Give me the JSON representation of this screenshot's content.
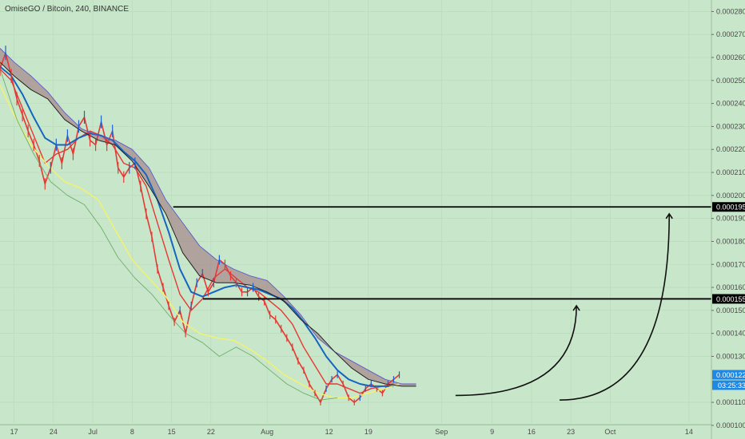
{
  "header": {
    "symbol_text": "OmiseGO / Bitcoin, 240, BINANCE"
  },
  "colors": {
    "background": "#c8e6c9",
    "grid": "#b9d9ba",
    "price_red": "#e53935",
    "price_blue": "#1e5fd0",
    "tenkan_red": "#e53935",
    "kijun_blue": "#1565c0",
    "ma_yellow": "#f4f36a",
    "lagging_green": "#6fae6c",
    "cloud_bear": "#9c6b7a",
    "cloud_bull": "#8f8fd6",
    "span_black": "#222222",
    "span_blue": "#5b5bcb",
    "level_line": "#000000",
    "last_price_tag": "#1e88e5"
  },
  "chart_data": {
    "type": "line",
    "title": "OmiseGO / Bitcoin, 240, BINANCE",
    "xlabel": "",
    "ylabel": "",
    "ylim": [
      0.000101,
      0.000285
    ],
    "grid": false,
    "y_tick_labels": [
      "0.000280",
      "0.000270",
      "0.000260",
      "0.000250",
      "0.000240",
      "0.000230",
      "0.000220",
      "0.000210",
      "0.000200",
      "0.000190",
      "0.000180",
      "0.000170",
      "0.000160",
      "0.000150",
      "0.000140",
      "0.000130",
      "0.000110",
      "0.000100"
    ],
    "y_tick_values": [
      0.00028,
      0.00027,
      0.00026,
      0.00025,
      0.00024,
      0.00023,
      0.00022,
      0.00021,
      0.0002,
      0.00019,
      0.00018,
      0.00017,
      0.00016,
      0.00015,
      0.00014,
      0.00013,
      0.00011,
      0.0001
    ],
    "x_tick_labels": [
      "17",
      "24",
      "Jul",
      "8",
      "15",
      "22",
      "Aug",
      "12",
      "19",
      "Sep",
      "9",
      "16",
      "23",
      "Oct",
      "14"
    ],
    "x_tick_days": [
      -14,
      -7,
      0,
      7,
      14,
      21,
      31,
      42,
      49,
      62,
      71,
      78,
      85,
      92,
      106
    ],
    "x_range_days": [
      -16.5,
      110
    ],
    "series": [
      {
        "x": [
          -16.5,
          -15.5,
          -14.5,
          -13.5,
          -12.5,
          -11.5,
          -10.5,
          -9.5,
          -8.5,
          -7.5,
          -6.5,
          -5.5,
          -4.5,
          -3.5,
          -2.5,
          -1.5,
          -0.5,
          0.5,
          1.5,
          2.5,
          3.5,
          4.5,
          5.5,
          6.5,
          7.5,
          8.5,
          9.5,
          10.5,
          11.5,
          12.5,
          13.5,
          14.5,
          15.5,
          16.5,
          17.5,
          18.5,
          19.5,
          20.5,
          21.5,
          22.5,
          23.5,
          24.5,
          25.5,
          26.5,
          27.5,
          28.5,
          29.5,
          30.5,
          31.5,
          32.5,
          33.5,
          34.5,
          35.5,
          36.5,
          37.5,
          38.5,
          39.5,
          40.5,
          41.5,
          42.5,
          43.5,
          44.5,
          45.5,
          46.5,
          47.5,
          48.5,
          49.5,
          50.5,
          51.5,
          52.5,
          53.5,
          54.5
        ],
        "values": [
          0.000255,
          0.000262,
          0.000252,
          0.000242,
          0.000235,
          0.000228,
          0.000222,
          0.000215,
          0.000205,
          0.000212,
          0.000222,
          0.000214,
          0.000226,
          0.000218,
          0.00023,
          0.000234,
          0.000224,
          0.000222,
          0.000232,
          0.000222,
          0.000228,
          0.000212,
          0.000208,
          0.000212,
          0.000214,
          0.000204,
          0.000192,
          0.000182,
          0.000168,
          0.00016,
          0.000152,
          0.000145,
          0.00015,
          0.00014,
          0.000152,
          0.000162,
          0.000166,
          0.000158,
          0.000162,
          0.000172,
          0.00017,
          0.000165,
          0.000162,
          0.000158,
          0.000158,
          0.00016,
          0.000156,
          0.000154,
          0.000148,
          0.000146,
          0.000142,
          0.000138,
          0.000134,
          0.000128,
          0.000124,
          0.000118,
          0.000114,
          0.00011,
          0.000116,
          0.00012,
          0.000122,
          0.000118,
          0.000112,
          0.00011,
          0.000112,
          0.000116,
          0.000118,
          0.000116,
          0.000114,
          0.000118,
          0.00012,
          0.000122
        ]
      },
      {
        "x": [
          -16.5,
          -14.5,
          -12.5,
          -10.5,
          -8.5,
          -6.5,
          -4.5,
          -2.5,
          -0.5,
          1.5,
          3.5,
          5.5,
          7.5,
          9.5,
          11.5,
          13.5,
          15.5,
          17.5,
          19.5,
          21.5,
          23.5,
          25.5,
          27.5,
          29.5,
          31.5,
          33.5,
          35.5,
          37.5,
          39.5,
          41.5,
          43.5,
          45.5,
          47.5,
          49.5,
          51.5,
          53.5
        ],
        "values": [
          0.000255,
          0.00025,
          0.000238,
          0.000226,
          0.000214,
          0.000218,
          0.00022,
          0.000225,
          0.000228,
          0.000226,
          0.000222,
          0.000214,
          0.000212,
          0.000204,
          0.000188,
          0.000172,
          0.000157,
          0.00015,
          0.000155,
          0.000164,
          0.000168,
          0.000164,
          0.00016,
          0.000158,
          0.000154,
          0.00015,
          0.000144,
          0.000134,
          0.000126,
          0.000118,
          0.000118,
          0.000116,
          0.000114,
          0.000116,
          0.000117,
          0.000118
        ]
      },
      {
        "x": [
          -16.5,
          -14.5,
          -12.5,
          -10.5,
          -8.5,
          -6.5,
          -4.5,
          -2.5,
          -0.5,
          1.5,
          3.5,
          5.5,
          7.5,
          9.5,
          11.5,
          13.5,
          15.5,
          17.5,
          19.5,
          21.5,
          23.5,
          25.5,
          27.5,
          29.5,
          31.5,
          33.5,
          35.5,
          37.5,
          39.5,
          41.5,
          43.5,
          45.5,
          47.5,
          49.5,
          51.5,
          53.5
        ],
        "values": [
          0.000256,
          0.000252,
          0.000244,
          0.000234,
          0.000225,
          0.000222,
          0.000222,
          0.000225,
          0.000227,
          0.000226,
          0.000224,
          0.000219,
          0.000215,
          0.000209,
          0.000198,
          0.000184,
          0.000168,
          0.000158,
          0.000156,
          0.000158,
          0.00016,
          0.000161,
          0.00016,
          0.000159,
          0.000157,
          0.000155,
          0.000151,
          0.000145,
          0.000138,
          0.00013,
          0.000124,
          0.00012,
          0.000118,
          0.000117,
          0.000117,
          0.000117
        ]
      },
      {
        "x": [
          -16.5,
          -14,
          -11,
          -8,
          -5,
          -2,
          1,
          4,
          7,
          10,
          13,
          16,
          19,
          22,
          25,
          28,
          31,
          34,
          37,
          40,
          43,
          46,
          49,
          52,
          54.5
        ],
        "values": [
          0.000248,
          0.000235,
          0.000222,
          0.000213,
          0.000206,
          0.000203,
          0.000198,
          0.000185,
          0.000172,
          0.000164,
          0.000156,
          0.000145,
          0.00014,
          0.000138,
          0.000137,
          0.000133,
          0.000128,
          0.000122,
          0.000118,
          0.000114,
          0.000112,
          0.000112,
          0.000114,
          0.000116,
          0.000118
        ]
      },
      {
        "x": [
          -16.5,
          -13.5,
          -10.5,
          -7.5,
          -4.5,
          -1.5,
          1.5,
          4.5,
          7.5,
          10.5,
          13.5,
          16.5,
          19.5,
          22.5,
          25.5,
          28.5,
          31.5,
          34.5,
          37.5,
          40.5,
          43.5
        ],
        "values": [
          0.000255,
          0.000233,
          0.000218,
          0.000206,
          0.0002,
          0.000196,
          0.000186,
          0.000173,
          0.000164,
          0.000157,
          0.000148,
          0.00014,
          0.000136,
          0.00013,
          0.000134,
          0.00013,
          0.000124,
          0.000118,
          0.000114,
          0.000111,
          0.000112
        ]
      },
      {
        "x": [
          -16.5,
          -14,
          -11,
          -8,
          -5,
          -2,
          1,
          4,
          7,
          10,
          13,
          16,
          19,
          22,
          25,
          28,
          31,
          34,
          37,
          40,
          43,
          46,
          49,
          52,
          55,
          57.5
        ],
        "values": [
          0.000264,
          0.000258,
          0.000252,
          0.000245,
          0.000236,
          0.000229,
          0.000226,
          0.000224,
          0.00022,
          0.000212,
          0.000198,
          0.000188,
          0.000178,
          0.000172,
          0.000168,
          0.000165,
          0.000163,
          0.000156,
          0.000148,
          0.000138,
          0.000132,
          0.000128,
          0.000124,
          0.00012,
          0.000118,
          0.000118
        ]
      },
      {
        "x": [
          -16.5,
          -14,
          -11,
          -8,
          -5,
          -2,
          1,
          4,
          7,
          10,
          13,
          16,
          19,
          22,
          25,
          28,
          31,
          34,
          37,
          40,
          43,
          46,
          49,
          52,
          55,
          57.5
        ],
        "values": [
          0.000258,
          0.000252,
          0.000246,
          0.000242,
          0.000233,
          0.000228,
          0.000224,
          0.000222,
          0.000215,
          0.000204,
          0.000192,
          0.000175,
          0.000165,
          0.000162,
          0.000162,
          0.000161,
          0.000158,
          0.000154,
          0.000146,
          0.00014,
          0.000132,
          0.000125,
          0.00012,
          0.000118,
          0.000117,
          0.000117
        ]
      },
      {
        "x": [
          -16.5,
          54.5
        ],
        "values": [
          0.000195,
          0.000155
        ]
      }
    ],
    "annotations": {
      "horizontal_levels": [
        {
          "value": 0.000195,
          "label": "0.000195",
          "x_from_days": 14.3
        },
        {
          "value": 0.000155,
          "label": "0.000155",
          "x_from_days": 19.6
        }
      ],
      "last_price": {
        "label": "0.000122",
        "value": 0.000122
      },
      "countdown": {
        "label": "03:25:33"
      },
      "projection_arrows": [
        {
          "from_day": 64.5,
          "from_value": 0.000113,
          "to_day": 86,
          "to_value": 0.000152
        },
        {
          "from_day": 83,
          "from_value": 0.000111,
          "to_day": 102.5,
          "to_value": 0.000192
        }
      ]
    }
  }
}
